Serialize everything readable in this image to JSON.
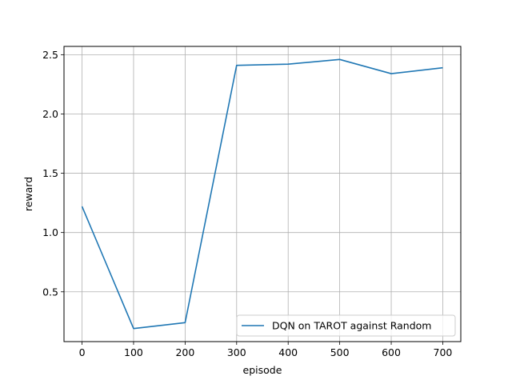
{
  "chart_data": {
    "type": "line",
    "title": "",
    "xlabel": "episode",
    "ylabel": "reward",
    "x": [
      0,
      100,
      200,
      300,
      400,
      500,
      600,
      700
    ],
    "series": [
      {
        "name": "DQN on TAROT against Random",
        "color": "#1f77b4",
        "values": [
          1.22,
          0.19,
          0.24,
          2.41,
          2.42,
          2.46,
          2.34,
          2.39
        ]
      }
    ],
    "xlim": [
      -35,
      735
    ],
    "ylim": [
      0.08,
      2.57
    ],
    "xticks": [
      0,
      100,
      200,
      300,
      400,
      500,
      600,
      700
    ],
    "xtick_labels": [
      "0",
      "100",
      "200",
      "300",
      "400",
      "500",
      "600",
      "700"
    ],
    "yticks": [
      0.5,
      1.0,
      1.5,
      2.0,
      2.5
    ],
    "ytick_labels": [
      "0.5",
      "1.0",
      "1.5",
      "2.0",
      "2.5"
    ],
    "grid": true,
    "legend_position": "bottom-right"
  }
}
